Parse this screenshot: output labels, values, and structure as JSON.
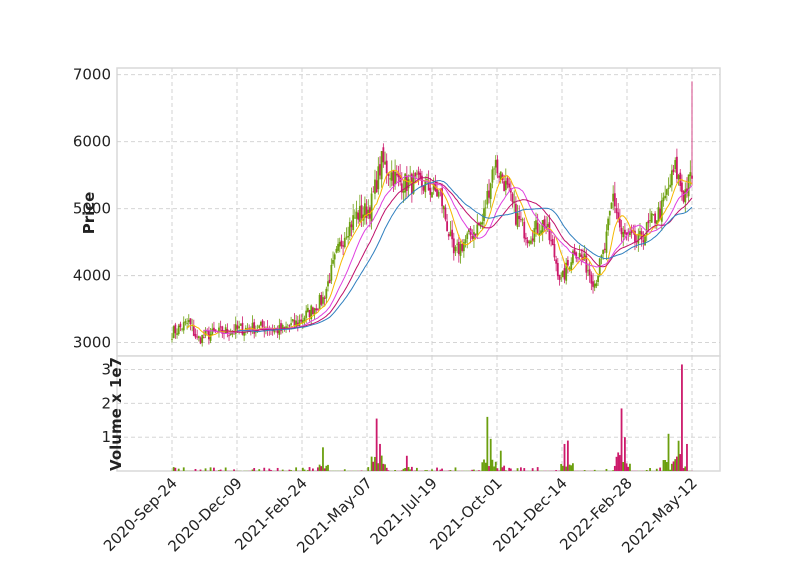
{
  "chart_data": {
    "type": "candlestick",
    "title": "",
    "price_panel": {
      "ylabel": "Price",
      "ylim": [
        2800,
        7100
      ],
      "yticks": [
        3000,
        4000,
        5000,
        6000,
        7000
      ]
    },
    "volume_panel": {
      "ylabel": "Volume x 1e7",
      "ylim": [
        0,
        3.4
      ],
      "yticks": [
        1,
        2,
        3
      ]
    },
    "xlabels": [
      "2020-Sep-24",
      "2020-Dec-09",
      "2021-Feb-24",
      "2021-May-07",
      "2021-Jul-19",
      "2021-Oct-01",
      "2021-Dec-14",
      "2022-Feb-28",
      "2022-May-12"
    ],
    "date_range": [
      "2020-09-24",
      "2022-05-12"
    ],
    "grid": true,
    "colors": {
      "up": "#6b9f0e",
      "down": "#cc1a6b",
      "ma_short": "#f5b800",
      "ma_mid": "#e040e0",
      "ma_long1": "#c0106a",
      "ma_long2": "#2f7fbf"
    },
    "price_waypoints": [
      [
        0,
        3150
      ],
      [
        10,
        3300
      ],
      [
        15,
        3050
      ],
      [
        22,
        3120
      ],
      [
        40,
        3200
      ],
      [
        55,
        3230
      ],
      [
        65,
        3180
      ],
      [
        75,
        3300
      ],
      [
        90,
        3650
      ],
      [
        98,
        4300
      ],
      [
        104,
        4700
      ],
      [
        110,
        4900
      ],
      [
        118,
        5000
      ],
      [
        125,
        5700
      ],
      [
        135,
        5400
      ],
      [
        150,
        5350
      ],
      [
        160,
        5200
      ],
      [
        168,
        4300
      ],
      [
        174,
        4500
      ],
      [
        185,
        4800
      ],
      [
        192,
        5700
      ],
      [
        198,
        5400
      ],
      [
        205,
        4900
      ],
      [
        212,
        4600
      ],
      [
        222,
        4800
      ],
      [
        228,
        4300
      ],
      [
        232,
        3900
      ],
      [
        240,
        4400
      ],
      [
        246,
        4200
      ],
      [
        252,
        3900
      ],
      [
        258,
        4400
      ],
      [
        263,
        5200
      ],
      [
        268,
        4600
      ],
      [
        278,
        4500
      ],
      [
        286,
        4800
      ],
      [
        292,
        5000
      ],
      [
        300,
        5600
      ],
      [
        305,
        5200
      ],
      [
        310,
        5500
      ]
    ],
    "volume_spikes": [
      [
        90,
        0.7
      ],
      [
        122,
        1.55
      ],
      [
        124,
        0.8
      ],
      [
        140,
        0.45
      ],
      [
        188,
        1.6
      ],
      [
        190,
        0.95
      ],
      [
        196,
        0.6
      ],
      [
        234,
        0.8
      ],
      [
        236,
        0.9
      ],
      [
        266,
        0.5
      ],
      [
        268,
        1.85
      ],
      [
        270,
        1.0
      ],
      [
        296,
        1.1
      ],
      [
        300,
        0.35
      ],
      [
        304,
        3.15
      ],
      [
        303,
        0.5
      ]
    ]
  }
}
